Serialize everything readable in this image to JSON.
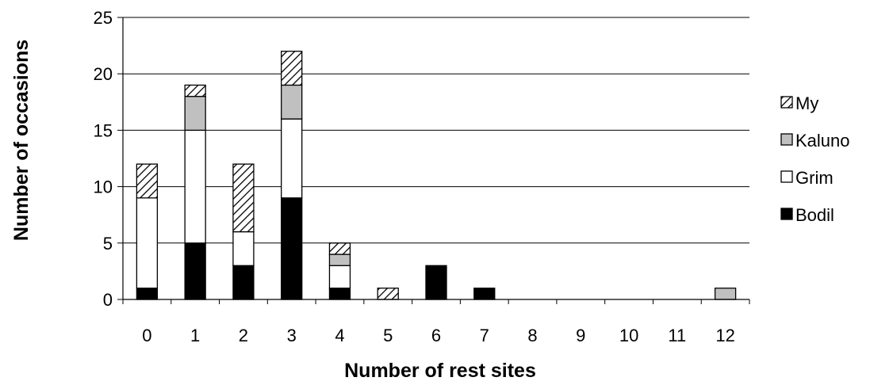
{
  "chart_data": {
    "type": "bar",
    "stacked": true,
    "xlabel": "Number of rest sites",
    "ylabel": "Number of occasions",
    "categories": [
      "0",
      "1",
      "2",
      "3",
      "4",
      "5",
      "6",
      "7",
      "8",
      "9",
      "10",
      "11",
      "12"
    ],
    "ylim": [
      0,
      25
    ],
    "yticks": [
      "0",
      "5",
      "10",
      "15",
      "20",
      "25"
    ],
    "grid": true,
    "legend_position": "right",
    "series": [
      {
        "name": "Bodil",
        "values": [
          1,
          5,
          3,
          9,
          1,
          0,
          3,
          1,
          0,
          0,
          0,
          0,
          0
        ],
        "fill": "solid",
        "color": "#000000"
      },
      {
        "name": "Grim",
        "values": [
          8,
          10,
          3,
          7,
          2,
          0,
          0,
          0,
          0,
          0,
          0,
          0,
          0
        ],
        "fill": "solid",
        "color": "#ffffff"
      },
      {
        "name": "Kaluno",
        "values": [
          0,
          3,
          0,
          3,
          1,
          0,
          0,
          0,
          0,
          0,
          0,
          0,
          1
        ],
        "fill": "solid",
        "color": "#c0c0c0"
      },
      {
        "name": "My",
        "values": [
          3,
          1,
          6,
          3,
          1,
          1,
          0,
          0,
          0,
          0,
          0,
          0,
          0
        ],
        "fill": "hatch",
        "color": "#000000"
      }
    ],
    "legend_order": [
      "My",
      "Kaluno",
      "Grim",
      "Bodil"
    ]
  }
}
